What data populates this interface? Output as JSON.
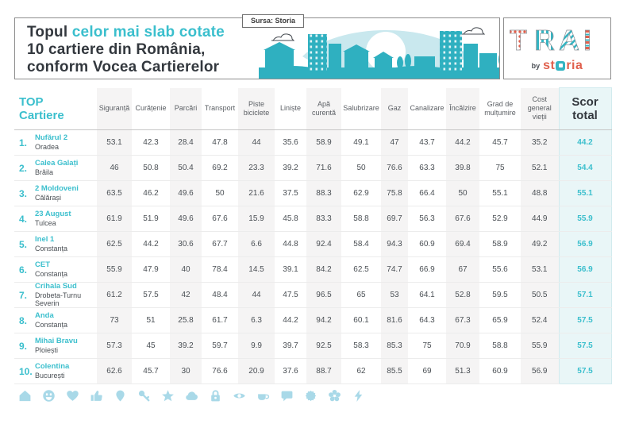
{
  "header": {
    "title_part1": "Topul ",
    "title_part2": "celor mai slab cotate",
    "title_line2": "10 cartiere din România,",
    "title_line3": "conform Vocea Cartierelor",
    "source_label": "Sursa: Storia",
    "logo": {
      "main": "TRAI",
      "by": "by",
      "brand_pre": "st",
      "brand_post": "ria"
    }
  },
  "chart_data": {
    "type": "table",
    "title": "Topul celor mai slab cotate 10 cartiere din România, conform Vocea Cartierelor",
    "top_label_line1": "TOP",
    "top_label_line2": "Cartiere",
    "score_head_line1": "Scor",
    "score_head_line2": "total",
    "columns": [
      "Siguranță",
      "Curățenie",
      "Parcări",
      "Transport",
      "Piste biciclete",
      "Liniște",
      "Apă curentă",
      "Salubrizare",
      "Gaz",
      "Canalizare",
      "Încălzire",
      "Grad de mulțumire",
      "Cost general vieții"
    ],
    "rows": [
      {
        "rank": "1.",
        "name": "Nufărul 2",
        "city": "Oradea",
        "values": [
          53.1,
          42.3,
          28.4,
          47.8,
          44,
          35.6,
          58.9,
          49.1,
          47,
          43.7,
          44.2,
          45.7,
          35.2
        ],
        "total": 44.2
      },
      {
        "rank": "2.",
        "name": "Calea Galați",
        "city": "Brăila",
        "values": [
          46,
          50.8,
          50.4,
          69.2,
          23.3,
          39.2,
          71.6,
          50,
          76.6,
          63.3,
          39.8,
          75,
          52.1
        ],
        "total": 54.4
      },
      {
        "rank": "3.",
        "name": "2 Moldoveni",
        "city": "Călărași",
        "values": [
          63.5,
          46.2,
          49.6,
          50,
          21.6,
          37.5,
          88.3,
          62.9,
          75.8,
          66.4,
          50,
          55.1,
          48.8
        ],
        "total": 55.1
      },
      {
        "rank": "4.",
        "name": "23 August",
        "city": "Tulcea",
        "values": [
          61.9,
          51.9,
          49.6,
          67.6,
          15.9,
          45.8,
          83.3,
          58.8,
          69.7,
          56.3,
          67.6,
          52.9,
          44.9
        ],
        "total": 55.9
      },
      {
        "rank": "5.",
        "name": "Inel 1",
        "city": "Constanța",
        "values": [
          62.5,
          44.2,
          30.6,
          67.7,
          6.6,
          44.8,
          92.4,
          58.4,
          94.3,
          60.9,
          69.4,
          58.9,
          49.2
        ],
        "total": 56.9
      },
      {
        "rank": "6.",
        "name": "CET",
        "city": "Constanța",
        "values": [
          55.9,
          47.9,
          40,
          78.4,
          14.5,
          39.1,
          84.2,
          62.5,
          74.7,
          66.9,
          67,
          55.6,
          53.1
        ],
        "total": 56.9
      },
      {
        "rank": "7.",
        "name": "Crihala Sud",
        "city": "Drobeta-Turnu Severin",
        "values": [
          61.2,
          57.5,
          42,
          48.4,
          44,
          47.5,
          96.5,
          65,
          53,
          64.1,
          52.8,
          59.5,
          50.5
        ],
        "total": 57.1
      },
      {
        "rank": "8.",
        "name": "Anda",
        "city": "Constanța",
        "values": [
          73,
          51,
          25.8,
          61.7,
          6.3,
          44.2,
          94.2,
          60.1,
          81.6,
          64.3,
          67.3,
          65.9,
          52.4
        ],
        "total": 57.5
      },
      {
        "rank": "9.",
        "name": "Mihai Bravu",
        "city": "Ploiești",
        "values": [
          57.3,
          45,
          39.2,
          59.7,
          9.9,
          39.7,
          92.5,
          58.3,
          85.3,
          75,
          70.9,
          58.8,
          55.9
        ],
        "total": 57.5
      },
      {
        "rank": "10.",
        "name": "Colentina",
        "city": "București",
        "values": [
          62.6,
          45.7,
          30,
          76.6,
          20.9,
          37.6,
          88.7,
          62,
          85.5,
          69,
          51.3,
          60.9,
          56.9
        ],
        "total": 57.5
      }
    ]
  },
  "footer": {
    "icons": [
      "house-icon",
      "smiley-icon",
      "heart-icon",
      "thumbs-up-icon",
      "map-pin-icon",
      "key-icon",
      "star-icon",
      "cloud-icon",
      "padlock-icon",
      "eye-icon",
      "cup-icon",
      "speech-bubble-icon",
      "sunburst-icon",
      "flower-icon",
      "lightning-icon"
    ]
  },
  "colors": {
    "accent": "#3bbfcd",
    "dark_text": "#33383e",
    "column_stripe": "#f5f4f4",
    "score_column_bg": "#e9f6f7",
    "footer_icon_blue": "#a9d9e8",
    "brand_red": "#e0604d",
    "illustration_teal": "#2fb0c0",
    "eye_light": "#c9e8ee"
  }
}
